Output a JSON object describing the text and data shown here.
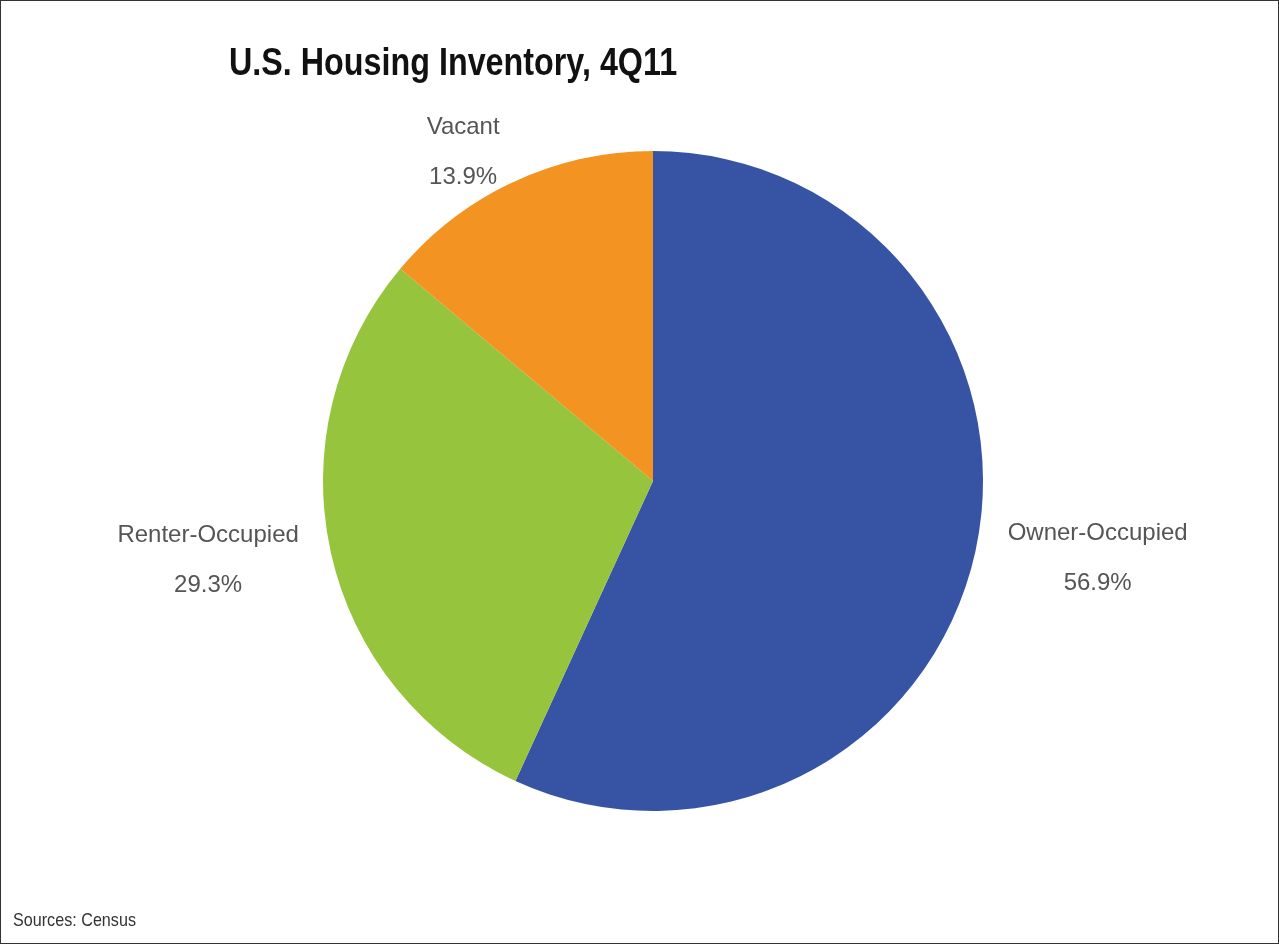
{
  "chart_data": {
    "type": "pie",
    "title": "U.S. Housing Inventory, 4Q11",
    "categories": [
      "Owner-Occupied",
      "Renter-Occupied",
      "Vacant"
    ],
    "values": [
      56.9,
      29.3,
      13.9
    ],
    "colors": [
      "#3653a4",
      "#96c43c",
      "#f39422"
    ],
    "value_labels": [
      "56.9%",
      "29.3%",
      "13.9%"
    ],
    "legend": false,
    "annotations": [
      "Sources: Census"
    ]
  }
}
